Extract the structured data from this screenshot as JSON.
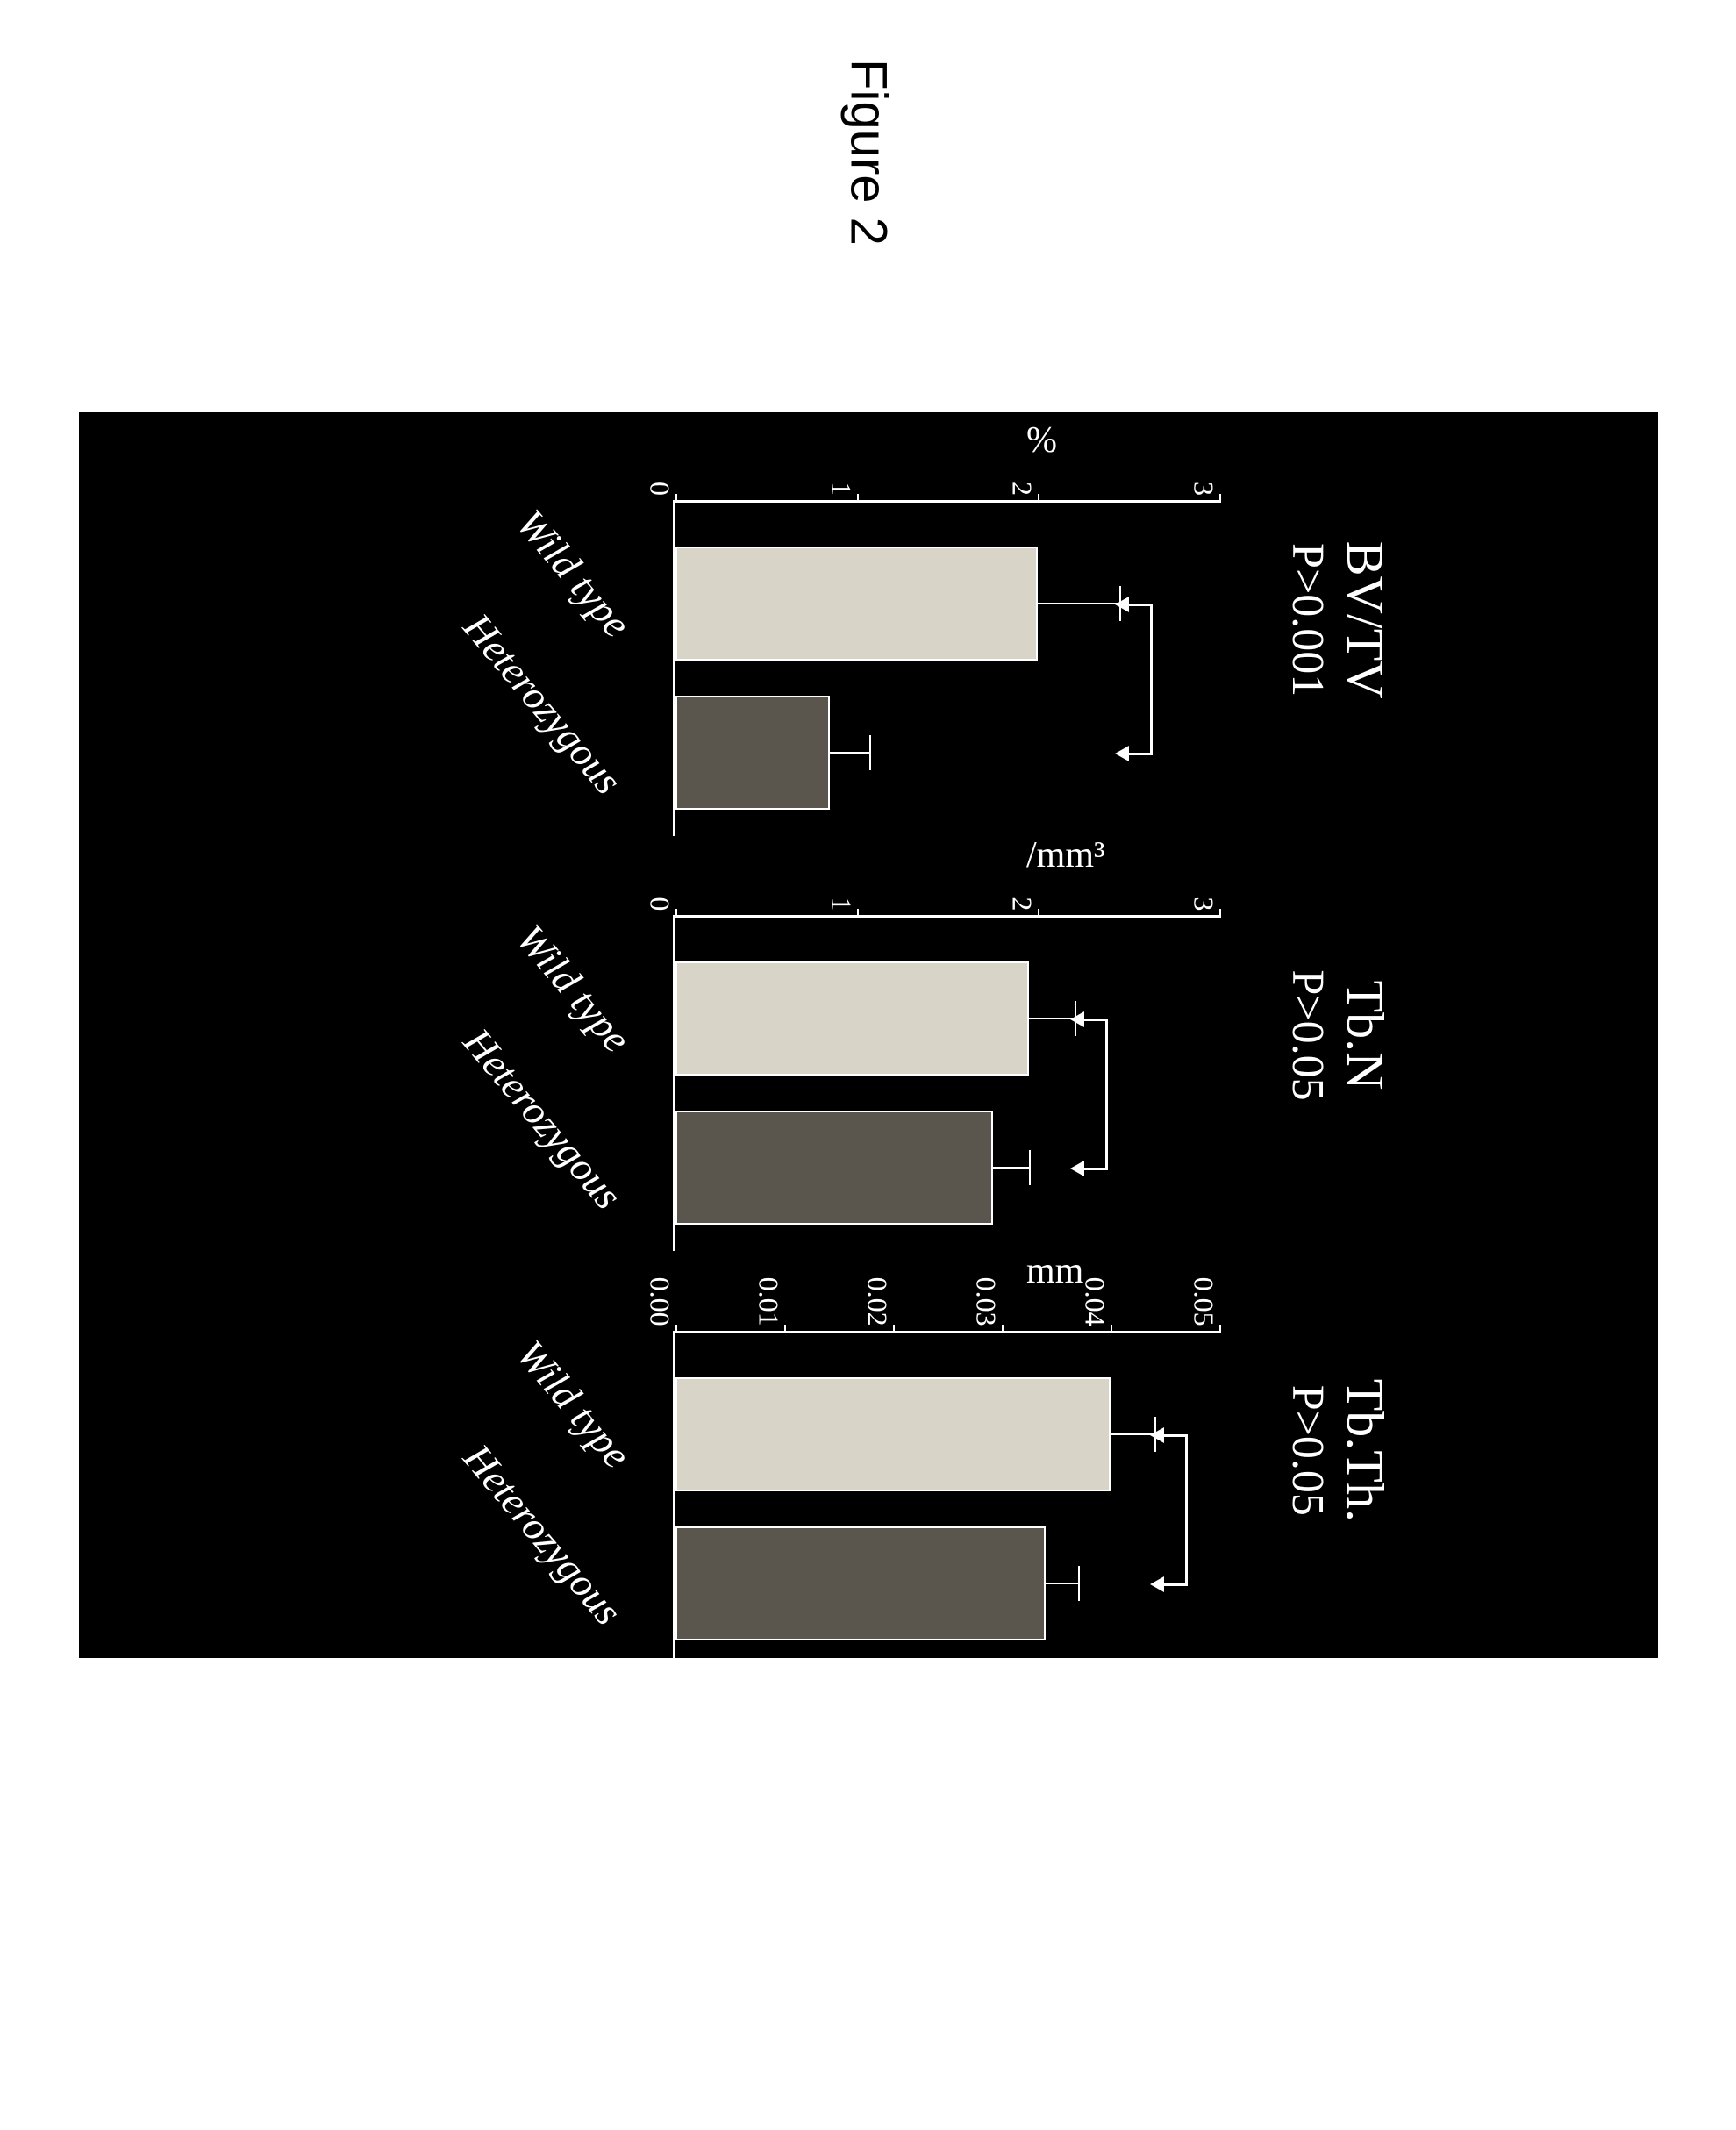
{
  "figure_title": "Figure 2",
  "background_color": "#000000",
  "bar_colors": {
    "wild_type": "#d8d4c8",
    "heterozygous": "#5a564e"
  },
  "axis_color": "#ffffff",
  "text_color": "#ffffff",
  "xlabels": {
    "wt": "Wild type",
    "het": "Heterozygous"
  },
  "charts": [
    {
      "title": "BV/TV",
      "pvalue": "P>0.001",
      "ylabel": "%",
      "ylim": [
        0,
        3
      ],
      "yticks": [
        0,
        1,
        2,
        3
      ],
      "values": {
        "wt": 2.0,
        "het": 0.85
      },
      "errors": {
        "wt": 0.45,
        "het": 0.22
      }
    },
    {
      "title": "Tb.N",
      "pvalue": "P>0.05",
      "ylabel": "/mm³",
      "ylim": [
        0,
        3
      ],
      "yticks": [
        0,
        1,
        2,
        3
      ],
      "values": {
        "wt": 1.95,
        "het": 1.75
      },
      "errors": {
        "wt": 0.25,
        "het": 0.2
      }
    },
    {
      "title": "Tb.Th.",
      "pvalue": "P>0.05",
      "ylabel": "mm",
      "ylim": [
        0,
        0.05
      ],
      "yticks": [
        0.0,
        0.01,
        0.02,
        0.03,
        0.04,
        0.05
      ],
      "ytick_decimals": 2,
      "values": {
        "wt": 0.04,
        "het": 0.034
      },
      "errors": {
        "wt": 0.004,
        "het": 0.003
      }
    }
  ]
}
